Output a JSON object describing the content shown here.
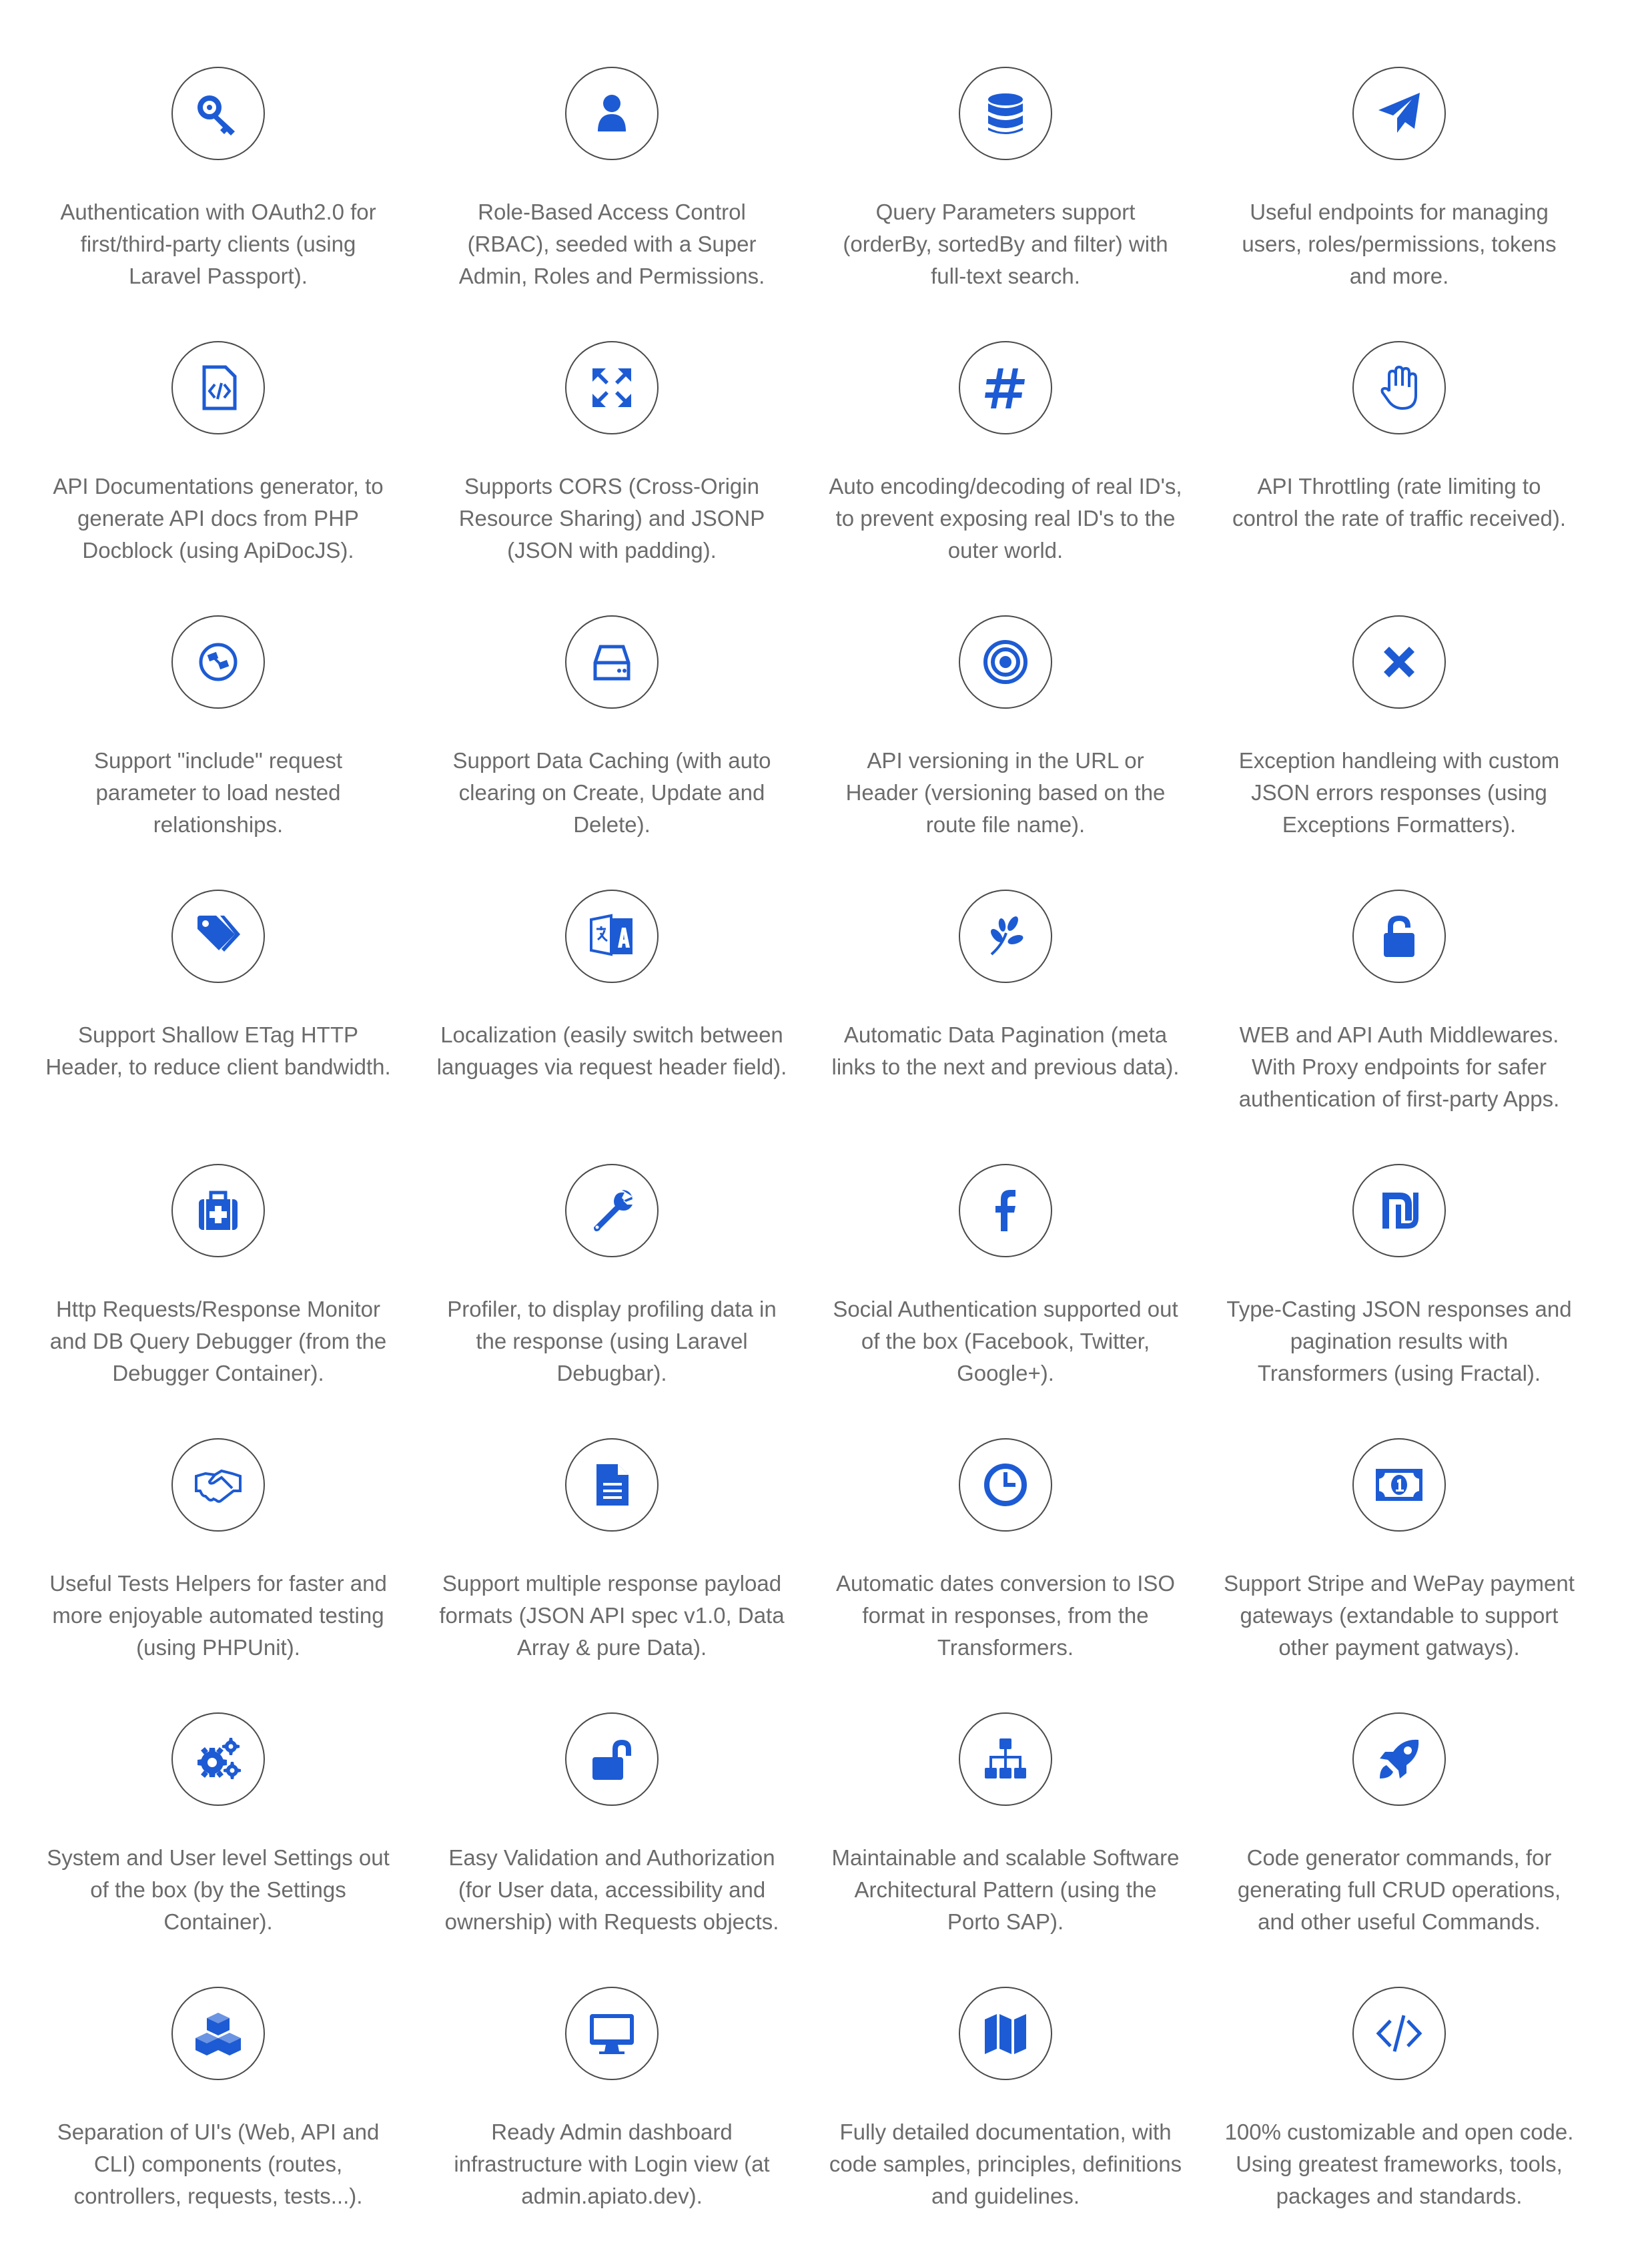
{
  "accent_color": "#1d5bd4",
  "features": [
    {
      "icon": "key-icon",
      "text": "Authentication with OAuth2.0 for first/third-party clients (using Laravel Passport)."
    },
    {
      "icon": "user-icon",
      "text": "Role-Based Access Control (RBAC), seeded with a Super Admin, Roles and Permissions."
    },
    {
      "icon": "database-icon",
      "text": "Query Parameters support (orderBy, sortedBy and filter) with full-text search."
    },
    {
      "icon": "paper-plane-icon",
      "text": "Useful endpoints for managing users, roles/permissions, tokens and more."
    },
    {
      "icon": "file-code-icon",
      "text": "API Documentations generator, to generate API docs from PHP Docblock (using ApiDocJS)."
    },
    {
      "icon": "arrows-expand-icon",
      "text": "Supports CORS (Cross-Origin Resource Sharing) and JSONP (JSON with padding)."
    },
    {
      "icon": "hashtag-icon",
      "text": "Auto encoding/decoding of real ID's, to prevent exposing real ID's to the outer world."
    },
    {
      "icon": "hand-icon",
      "text": "API Throttling (rate limiting to control the rate of traffic received)."
    },
    {
      "icon": "satellite-icon",
      "text": "Support \"include\" request parameter to load nested relationships."
    },
    {
      "icon": "hard-drive-icon",
      "text": "Support Data Caching (with auto clearing on Create, Update and Delete)."
    },
    {
      "icon": "target-icon",
      "text": "API versioning in the URL or Header (versioning based on the route file name)."
    },
    {
      "icon": "close-icon",
      "text": "Exception handleing with custom JSON errors responses (using Exceptions Formatters)."
    },
    {
      "icon": "tags-icon",
      "text": "Support Shallow ETag HTTP Header, to reduce client bandwidth."
    },
    {
      "icon": "translate-icon",
      "text": "Localization (easily switch between languages via request header field)."
    },
    {
      "icon": "leaf-icon",
      "text": "Automatic Data Pagination (meta links to the next and previous data)."
    },
    {
      "icon": "unlock-icon",
      "text": "WEB and API Auth Middlewares. With Proxy endpoints for safer authentication of first-party Apps."
    },
    {
      "icon": "medkit-icon",
      "text": "Http Requests/Response Monitor and DB Query Debugger (from the Debugger Container)."
    },
    {
      "icon": "wrench-icon",
      "text": "Profiler, to display profiling data in the response (using Laravel Debugbar)."
    },
    {
      "icon": "facebook-icon",
      "text": "Social Authentication supported out of the box (Facebook, Twitter, Google+)."
    },
    {
      "icon": "shekel-icon",
      "text": "Type-Casting JSON responses and pagination results with Transformers (using Fractal)."
    },
    {
      "icon": "handshake-icon",
      "text": "Useful Tests Helpers for faster and more enjoyable automated testing (using PHPUnit)."
    },
    {
      "icon": "document-icon",
      "text": "Support multiple response payload formats (JSON API spec v1.0, Data Array & pure Data)."
    },
    {
      "icon": "clock-icon",
      "text": "Automatic dates conversion to ISO format in responses, from the Transformers."
    },
    {
      "icon": "money-bill-icon",
      "text": "Support Stripe and WePay payment gateways (extandable to support other payment gatways)."
    },
    {
      "icon": "gears-icon",
      "text": "System and User level Settings out of the box (by the Settings Container)."
    },
    {
      "icon": "unlock-alt-icon",
      "text": "Easy Validation and Authorization (for User data, accessibility and ownership) with Requests objects."
    },
    {
      "icon": "sitemap-icon",
      "text": "Maintainable and scalable Software Architectural Pattern (using the Porto SAP)."
    },
    {
      "icon": "rocket-icon",
      "text": "Code generator commands, for generating full CRUD operations, and other useful Commands."
    },
    {
      "icon": "cubes-icon",
      "text": "Separation of UI's (Web, API and CLI) components (routes, controllers, requests, tests...)."
    },
    {
      "icon": "desktop-icon",
      "text": "Ready Admin dashboard infrastructure with Login view (at admin.apiato.dev)."
    },
    {
      "icon": "map-icon",
      "text": "Fully detailed documentation, with code samples, principles, definitions and guidelines."
    },
    {
      "icon": "code-icon",
      "text": "100% customizable and open code. Using greatest frameworks, tools, packages and standards."
    }
  ]
}
